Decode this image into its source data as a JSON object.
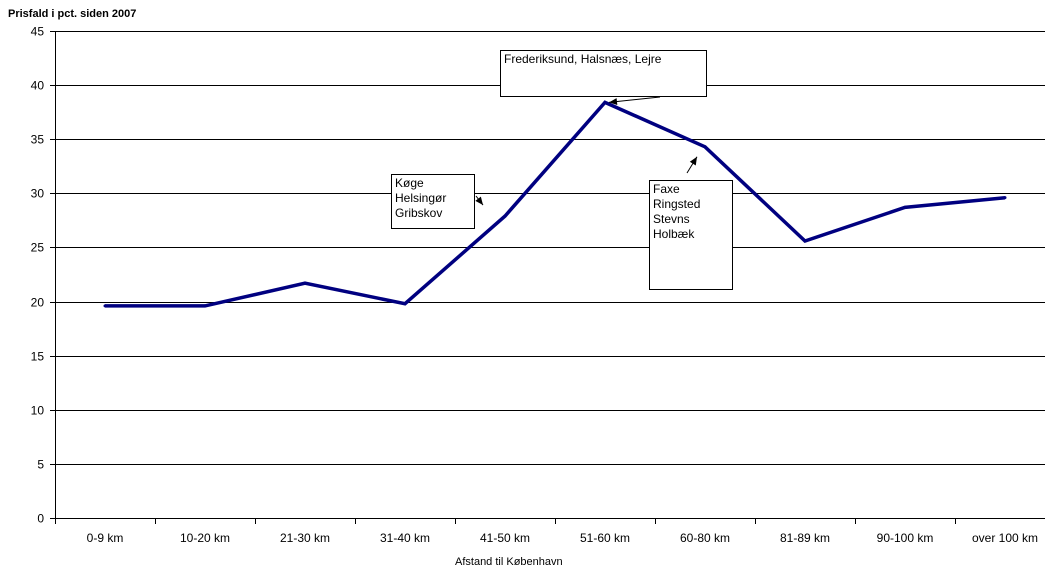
{
  "chart_data": {
    "type": "line",
    "title": "",
    "ylabel": "Prisfald i pct. siden 2007",
    "xlabel": "Afstand til København",
    "ylim": [
      0,
      45
    ],
    "yticks": [
      0,
      5,
      10,
      15,
      20,
      25,
      30,
      35,
      40,
      45
    ],
    "categories": [
      "0-9 km",
      "10-20 km",
      "21-30 km",
      "31-40 km",
      "41-50 km",
      "51-60 km",
      "60-80 km",
      "81-89 km",
      "90-100 km",
      "over 100 km"
    ],
    "series": [
      {
        "values": [
          19.6,
          19.6,
          21.7,
          19.8,
          27.9,
          38.4,
          34.3,
          25.6,
          28.7,
          29.6
        ]
      }
    ],
    "grid": "horizontal",
    "legend": "none",
    "line_color": "#000080",
    "annotations": [
      {
        "lines": [
          "Køge",
          "Helsingør",
          "Gribskov"
        ],
        "points_to": "41-50 km"
      },
      {
        "lines": [
          "Frederiksund, Halsnæs, Lejre"
        ],
        "points_to": "51-60 km"
      },
      {
        "lines": [
          "Faxe",
          "Ringsted",
          "Stevns",
          "Holbæk"
        ],
        "points_to": "60-80 km"
      }
    ]
  }
}
